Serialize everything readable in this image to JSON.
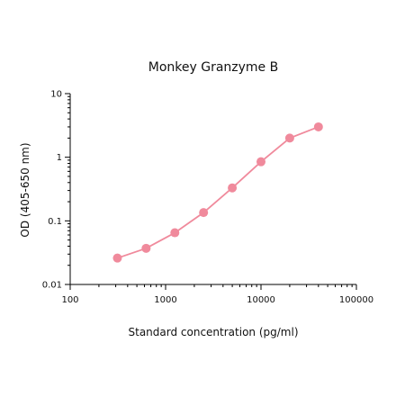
{
  "chart_data": {
    "type": "line",
    "title": "Monkey Granzyme B",
    "xlabel": "Standard concentration (pg/ml)",
    "ylabel": "OD (405-650 nm)",
    "x_scale": "log",
    "y_scale": "log",
    "xlim": [
      100,
      100000
    ],
    "ylim": [
      0.01,
      10
    ],
    "x_ticks": [
      100,
      1000,
      10000,
      100000
    ],
    "x_tick_labels": [
      "100",
      "1000",
      "10000",
      "100000"
    ],
    "y_ticks": [
      0.01,
      0.1,
      1,
      10
    ],
    "y_tick_labels": [
      "0.01",
      "0.1",
      "1",
      "10"
    ],
    "grid": false,
    "color": "#f08a9c",
    "series": [
      {
        "x": [
          312.5,
          625,
          1250,
          2500,
          5000,
          10000,
          20000,
          40000
        ],
        "y": [
          0.026,
          0.037,
          0.065,
          0.135,
          0.33,
          0.85,
          2.0,
          3.0
        ]
      }
    ]
  }
}
